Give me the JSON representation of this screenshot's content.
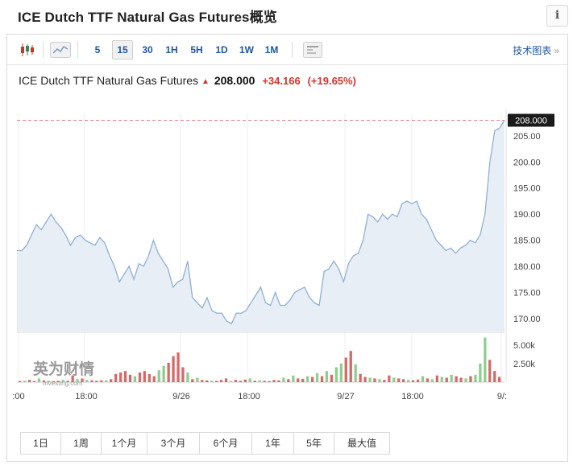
{
  "page": {
    "title": "ICE Dutch TTF Natural Gas Futures概览",
    "info_label": "i"
  },
  "toolbar": {
    "intervals": [
      "5",
      "15",
      "30",
      "1H",
      "5H",
      "1D",
      "1W",
      "1M"
    ],
    "active_interval": "15",
    "tech_chart_label": "技术图表",
    "tech_chart_arrow": "»",
    "icons": [
      "candlestick-icon",
      "area-chart-icon",
      "compare-icon"
    ]
  },
  "quote": {
    "name": "ICE Dutch TTF Natural Gas Futures",
    "price": "208.000",
    "change": "+34.166",
    "change_pct": "(+19.65%)",
    "direction_color": "#d9342b"
  },
  "chart_data": {
    "type": "area",
    "y_ticks": [
      "205.00",
      "200.00",
      "195.00",
      "190.00",
      "185.00",
      "180.00",
      "175.00",
      "170.00"
    ],
    "ylim": [
      167.5,
      209.0
    ],
    "last_price_label": "208.000",
    "last_price": 208.0,
    "x_ticks": [
      ":00",
      "18:00",
      "9/26",
      "18:00",
      "9/27",
      "18:00",
      "9/:"
    ],
    "price_series": [
      183,
      183,
      184,
      186,
      188,
      187,
      188.5,
      190,
      188.5,
      187.5,
      186,
      184,
      185.5,
      186,
      185,
      184.5,
      184,
      185.5,
      184.5,
      182,
      180,
      177,
      178.5,
      180,
      177.5,
      180.5,
      180,
      182,
      185,
      182.5,
      181,
      179.5,
      176,
      177,
      177.5,
      181,
      174,
      173,
      172,
      174,
      171.5,
      171,
      171,
      169.5,
      169,
      171,
      171,
      171.5,
      173,
      174.5,
      176,
      173,
      172.5,
      175,
      172.5,
      172.5,
      173.5,
      175,
      175.5,
      176,
      174,
      173,
      172.5,
      179,
      179.5,
      181,
      179.5,
      177,
      180.5,
      182,
      182.5,
      185,
      190,
      189.5,
      188.5,
      190,
      189,
      190,
      189.5,
      192,
      192.5,
      192,
      192.5,
      190,
      189,
      187,
      185,
      184,
      183,
      183.5,
      182.5,
      183.5,
      184,
      185,
      184.5,
      186,
      190,
      200,
      206,
      206.5,
      208
    ],
    "volume_ticks": [
      "5.00k",
      "2.50k"
    ],
    "volume_max": 6500,
    "volume_series": [
      {
        "v": 150,
        "up": false
      },
      {
        "v": 200,
        "up": true
      },
      {
        "v": 300,
        "up": false
      },
      {
        "v": 150,
        "up": false
      },
      {
        "v": 500,
        "up": true
      },
      {
        "v": 250,
        "up": false
      },
      {
        "v": 200,
        "up": true
      },
      {
        "v": 150,
        "up": false
      },
      {
        "v": 200,
        "up": false
      },
      {
        "v": 300,
        "up": true
      },
      {
        "v": 180,
        "up": false
      },
      {
        "v": 900,
        "up": false
      },
      {
        "v": 400,
        "up": true
      },
      {
        "v": 500,
        "up": false
      },
      {
        "v": 300,
        "up": true
      },
      {
        "v": 250,
        "up": false
      },
      {
        "v": 180,
        "up": false
      },
      {
        "v": 250,
        "up": false
      },
      {
        "v": 250,
        "up": true
      },
      {
        "v": 400,
        "up": false
      },
      {
        "v": 1100,
        "up": false
      },
      {
        "v": 1300,
        "up": false
      },
      {
        "v": 1500,
        "up": false
      },
      {
        "v": 1000,
        "up": false
      },
      {
        "v": 800,
        "up": true
      },
      {
        "v": 1300,
        "up": false
      },
      {
        "v": 1500,
        "up": false
      },
      {
        "v": 1100,
        "up": false
      },
      {
        "v": 800,
        "up": false
      },
      {
        "v": 1600,
        "up": true
      },
      {
        "v": 2200,
        "up": true
      },
      {
        "v": 2600,
        "up": false
      },
      {
        "v": 3500,
        "up": false
      },
      {
        "v": 4000,
        "up": false
      },
      {
        "v": 2000,
        "up": false
      },
      {
        "v": 1300,
        "up": true
      },
      {
        "v": 400,
        "up": false
      },
      {
        "v": 600,
        "up": true
      },
      {
        "v": 300,
        "up": false
      },
      {
        "v": 250,
        "up": false
      },
      {
        "v": 200,
        "up": true
      },
      {
        "v": 180,
        "up": false
      },
      {
        "v": 300,
        "up": false
      },
      {
        "v": 500,
        "up": false
      },
      {
        "v": 150,
        "up": true
      },
      {
        "v": 300,
        "up": false
      },
      {
        "v": 200,
        "up": false
      },
      {
        "v": 350,
        "up": false
      },
      {
        "v": 500,
        "up": true
      },
      {
        "v": 200,
        "up": false
      },
      {
        "v": 250,
        "up": true
      },
      {
        "v": 180,
        "up": false
      },
      {
        "v": 150,
        "up": false
      },
      {
        "v": 300,
        "up": false
      },
      {
        "v": 250,
        "up": false
      },
      {
        "v": 600,
        "up": true
      },
      {
        "v": 400,
        "up": false
      },
      {
        "v": 900,
        "up": true
      },
      {
        "v": 500,
        "up": false
      },
      {
        "v": 450,
        "up": false
      },
      {
        "v": 800,
        "up": true
      },
      {
        "v": 700,
        "up": false
      },
      {
        "v": 1200,
        "up": true
      },
      {
        "v": 800,
        "up": false
      },
      {
        "v": 1500,
        "up": true
      },
      {
        "v": 1000,
        "up": false
      },
      {
        "v": 2000,
        "up": true
      },
      {
        "v": 2500,
        "up": true
      },
      {
        "v": 3300,
        "up": false
      },
      {
        "v": 4200,
        "up": false
      },
      {
        "v": 2400,
        "up": true
      },
      {
        "v": 1100,
        "up": false
      },
      {
        "v": 700,
        "up": false
      },
      {
        "v": 600,
        "up": true
      },
      {
        "v": 500,
        "up": false
      },
      {
        "v": 400,
        "up": true
      },
      {
        "v": 300,
        "up": false
      },
      {
        "v": 900,
        "up": false
      },
      {
        "v": 600,
        "up": true
      },
      {
        "v": 500,
        "up": false
      },
      {
        "v": 400,
        "up": false
      },
      {
        "v": 300,
        "up": true
      },
      {
        "v": 250,
        "up": false
      },
      {
        "v": 350,
        "up": false
      },
      {
        "v": 800,
        "up": true
      },
      {
        "v": 500,
        "up": false
      },
      {
        "v": 400,
        "up": true
      },
      {
        "v": 900,
        "up": false
      },
      {
        "v": 700,
        "up": true
      },
      {
        "v": 600,
        "up": false
      },
      {
        "v": 1000,
        "up": true
      },
      {
        "v": 800,
        "up": false
      },
      {
        "v": 600,
        "up": false
      },
      {
        "v": 500,
        "up": true
      },
      {
        "v": 800,
        "up": false
      },
      {
        "v": 1000,
        "up": true
      },
      {
        "v": 2500,
        "up": true
      },
      {
        "v": 6000,
        "up": true
      },
      {
        "v": 3000,
        "up": false
      },
      {
        "v": 1500,
        "up": false
      },
      {
        "v": 700,
        "up": false
      }
    ],
    "colors": {
      "line": "#8fb0d3",
      "fill": "#e8eef6",
      "volume_up": "#8fce8f",
      "volume_down": "#d46a6a",
      "price_ref": "#e08080",
      "grid": "#ececec"
    }
  },
  "watermark": {
    "brand": "英为财情",
    "sub": "Investing.com"
  },
  "range_buttons": [
    "1日",
    "1周",
    "1个月",
    "3个月",
    "6个月",
    "1年",
    "5年",
    "最大值"
  ]
}
